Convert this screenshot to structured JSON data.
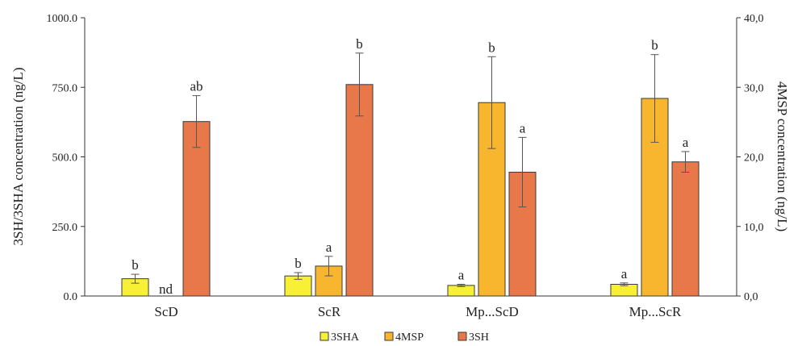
{
  "chart_data": {
    "type": "bar",
    "categories": [
      "ScD",
      "ScR",
      "Mp...ScD",
      "Mp...ScR"
    ],
    "y_left": {
      "label": "3SH/3SHA concentration (ng/L)",
      "ylim": [
        0,
        1000
      ],
      "ticks": [
        "0.0",
        "250.0",
        "500.0",
        "750.0",
        "1000.0"
      ]
    },
    "y_right": {
      "label": "4MSP concentration (ng/L)",
      "ylim": [
        0,
        40
      ],
      "ticks": [
        "0,0",
        "10,0",
        "20,0",
        "30,0",
        "40,0"
      ]
    },
    "series": [
      {
        "name": "3SHA",
        "axis": "left",
        "color": "#f7f035",
        "values": [
          62,
          72,
          38,
          42
        ],
        "errors": [
          16,
          12,
          4,
          5
        ],
        "labels": [
          "b",
          "b",
          "a",
          "a"
        ]
      },
      {
        "name": "4MSP",
        "axis": "right",
        "color": "#f8b52e",
        "values": [
          null,
          4.3,
          27.8,
          28.4
        ],
        "errors": [
          null,
          1.4,
          6.6,
          6.3
        ],
        "labels": [
          "nd",
          "a",
          "b",
          "b"
        ]
      },
      {
        "name": "3SH",
        "axis": "left",
        "color": "#e8774a",
        "values": [
          627,
          760,
          445,
          482
        ],
        "errors": [
          93,
          113,
          125,
          37
        ],
        "labels": [
          "ab",
          "b",
          "a",
          "a"
        ]
      }
    ],
    "grid": false,
    "legend_position": "bottom"
  }
}
